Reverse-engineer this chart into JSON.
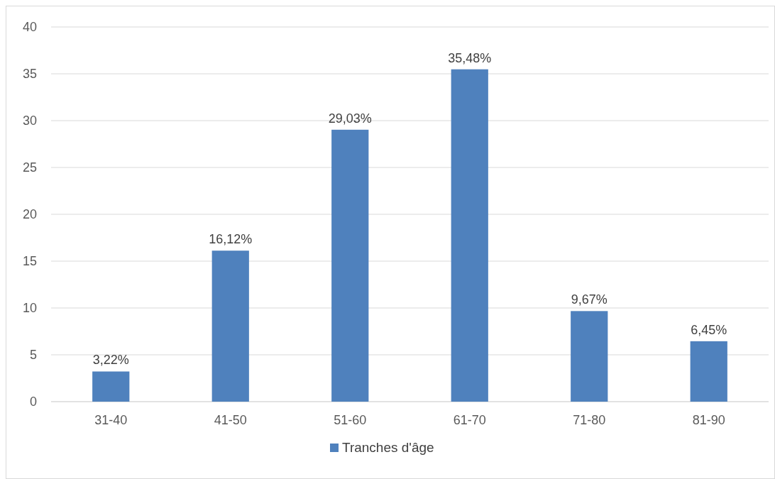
{
  "chart_data": {
    "type": "bar",
    "categories": [
      "31-40",
      "41-50",
      "51-60",
      "61-70",
      "71-80",
      "81-90"
    ],
    "series": [
      {
        "name": "Tranches d'âge",
        "color": "#4f81bd",
        "values": [
          3.22,
          16.12,
          29.03,
          35.48,
          9.67,
          6.45
        ],
        "value_labels": [
          "3,22%",
          "16,12%",
          "29,03%",
          "35,48%",
          "9,67%",
          "6,45%"
        ]
      }
    ],
    "ylim": [
      0,
      40
    ],
    "yticks": [
      0,
      5,
      10,
      15,
      20,
      25,
      30,
      35,
      40
    ],
    "grid": "y",
    "legend": "bottom"
  }
}
